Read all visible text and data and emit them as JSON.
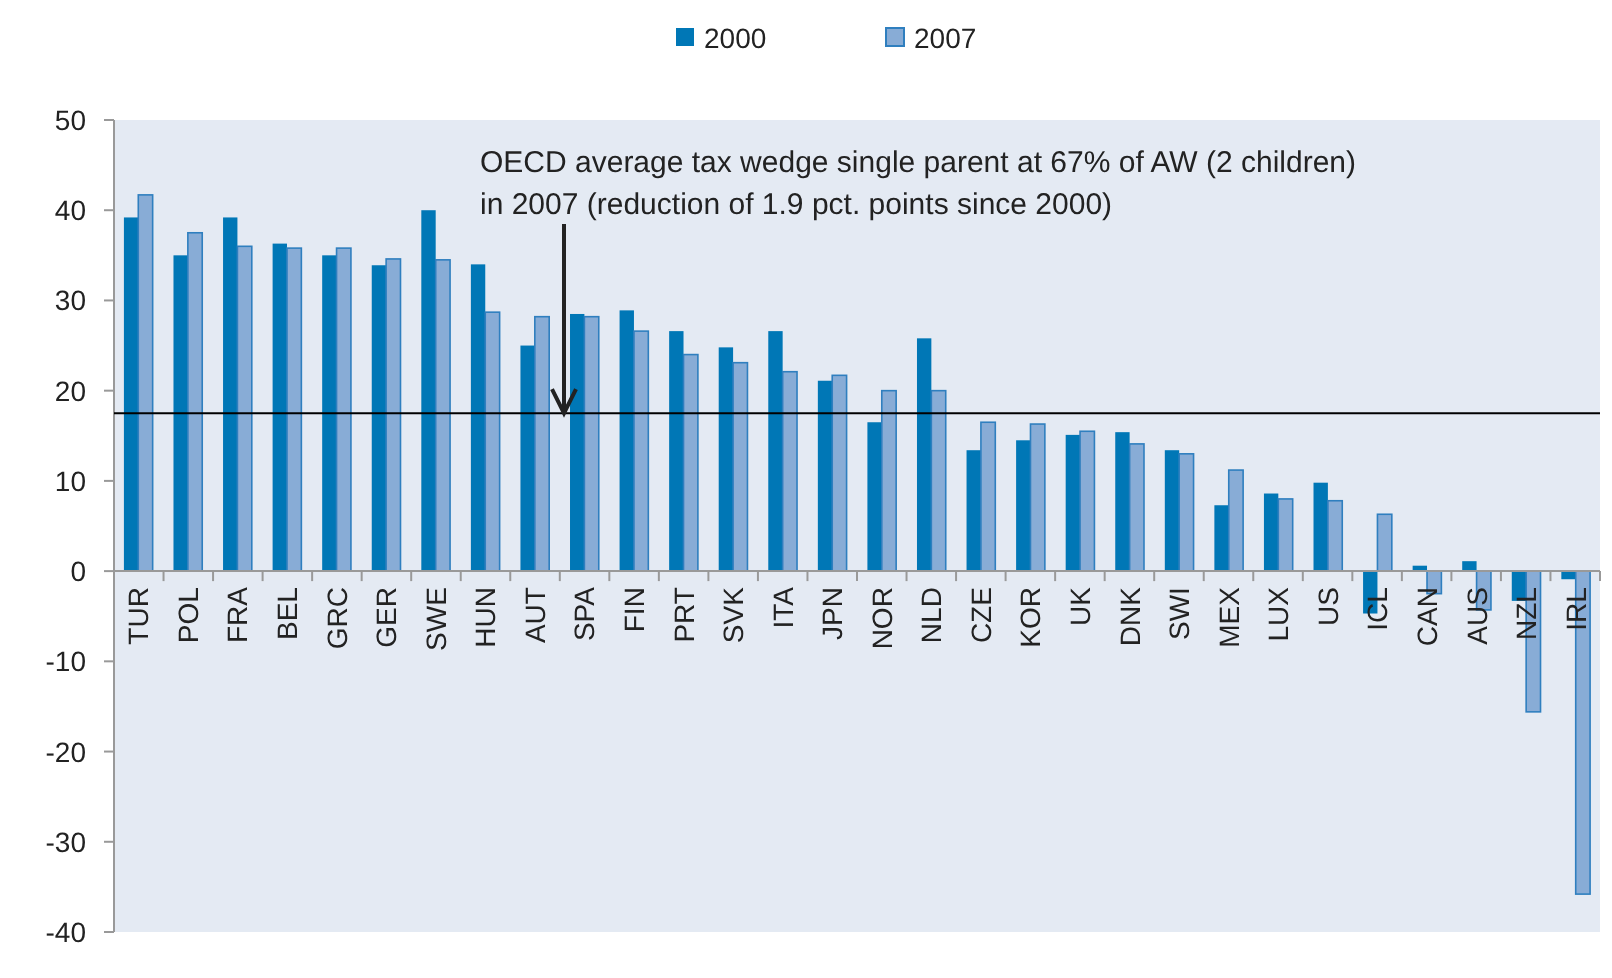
{
  "chart_data": {
    "type": "bar",
    "categories": [
      "TUR",
      "POL",
      "FRA",
      "BEL",
      "GRC",
      "GER",
      "SWE",
      "HUN",
      "AUT",
      "SPA",
      "FIN",
      "PRT",
      "SVK",
      "ITA",
      "JPN",
      "NOR",
      "NLD",
      "CZE",
      "KOR",
      "UK",
      "DNK",
      "SWI",
      "MEX",
      "LUX",
      "US",
      "ICL",
      "CAN",
      "AUS",
      "NZL",
      "IRL"
    ],
    "series": [
      {
        "name": "2000",
        "color": "#0077b6",
        "values": [
          39.2,
          35,
          39.2,
          36.3,
          35,
          33.9,
          40,
          34,
          25,
          28.5,
          28.9,
          26.6,
          24.8,
          26.6,
          21.1,
          16.5,
          25.8,
          13.4,
          14.5,
          15.1,
          15.4,
          13.4,
          7.3,
          8.6,
          9.8,
          -4.7,
          0.6,
          1.1,
          -3.3,
          -0.9
        ]
      },
      {
        "name": "2007",
        "color": "#88acd6",
        "values": [
          41.7,
          37.5,
          36,
          35.8,
          35.8,
          34.6,
          34.5,
          28.7,
          28.2,
          28.2,
          26.6,
          24,
          23.1,
          22.1,
          21.7,
          20,
          20,
          16.5,
          16.3,
          15.5,
          14.1,
          13,
          11.2,
          8,
          7.8,
          6.3,
          -2.5,
          -4.3,
          -15.6,
          -35.8
        ]
      }
    ],
    "ylim": [
      -40,
      50
    ],
    "yticks": [
      -40,
      -30,
      -20,
      -10,
      0,
      10,
      20,
      30,
      40,
      50
    ],
    "grid": false,
    "legend": "top",
    "ref_lines": [
      {
        "axis": "y",
        "value": 17.5,
        "color": "#000000",
        "label": "OECD average tax wedge single parent at 67% of AW (2 children)\nin 2007 (reduction of 1.9 pct. points since 2000)"
      }
    ]
  }
}
